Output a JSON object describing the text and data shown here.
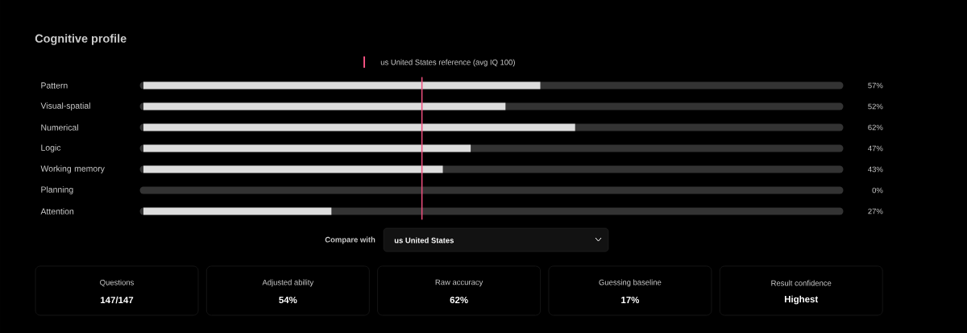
{
  "chart_data": {
    "type": "bar",
    "orientation": "horizontal",
    "title": "Cognitive profile",
    "categories": [
      "Pattern",
      "Visual-spatial",
      "Numerical",
      "Logic",
      "Working memory",
      "Planning",
      "Attention"
    ],
    "values": [
      57,
      52,
      62,
      47,
      43,
      0,
      27
    ],
    "value_labels": [
      "57%",
      "52%",
      "62%",
      "47%",
      "43%",
      "0%",
      "27%"
    ],
    "color": "#dddddd",
    "xlim": [
      0,
      100
    ],
    "tick_labels": "y",
    "ref_lines": [
      {
        "axis": "x",
        "value": 40,
        "label": "us United States reference (avg IQ 100)",
        "color": "#f0507f"
      }
    ],
    "annotations": [
      "Compare with",
      "us United States",
      "Questions",
      "147/147",
      "Adjusted ability",
      "54%",
      "Raw accuracy",
      "62%",
      "Guessing baseline",
      "17%",
      "Result confidence",
      "Highest"
    ]
  }
}
